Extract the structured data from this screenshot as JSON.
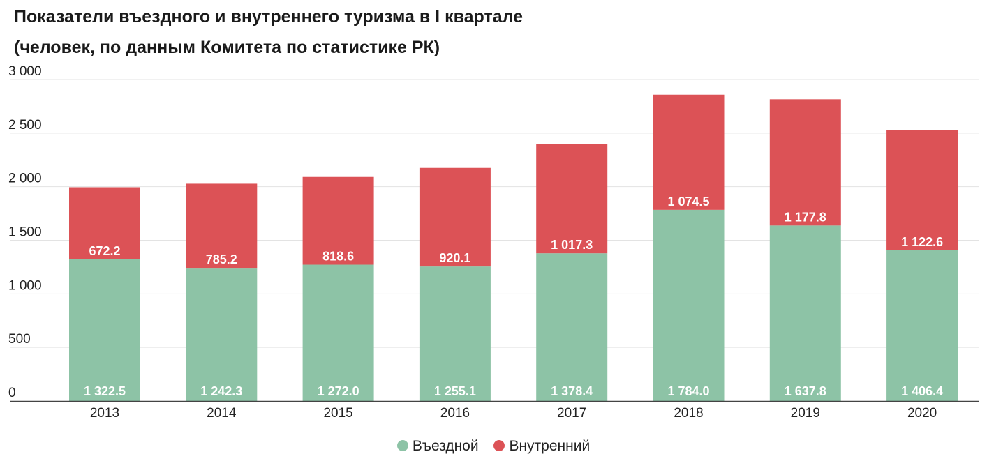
{
  "chart_data": {
    "type": "bar",
    "stacked": true,
    "title": "Показатели въездного и внутреннего туризма в I квартале (человек, по данным Комитета по статистике РК)",
    "title_lines": [
      "Показатели въездного и внутреннего туризма в I квартале",
      "(человек, по данным Комитета по статистике РК)"
    ],
    "categories": [
      "2013",
      "2014",
      "2015",
      "2016",
      "2017",
      "2018",
      "2019",
      "2020"
    ],
    "series": [
      {
        "name": "Въездной",
        "color": "#8dc3a6",
        "values": [
          1322.5,
          1242.3,
          1272.0,
          1255.1,
          1378.4,
          1784.0,
          1637.8,
          1406.4
        ],
        "labels": [
          "1 322.5",
          "1 242.3",
          "1 272.0",
          "1 255.1",
          "1 378.4",
          "1 784.0",
          "1 637.8",
          "1 406.4"
        ]
      },
      {
        "name": "Внутренний",
        "color": "#dc5256",
        "values": [
          672.2,
          785.2,
          818.6,
          920.1,
          1017.3,
          1074.5,
          1177.8,
          1122.6
        ],
        "labels": [
          "672.2",
          "785.2",
          "818.6",
          "920.1",
          "1 017.3",
          "1 074.5",
          "1 177.8",
          "1 122.6"
        ]
      }
    ],
    "ylim": [
      0,
      3000
    ],
    "yticks": [
      0,
      500,
      1000,
      1500,
      2000,
      2500,
      3000
    ],
    "ytick_labels": [
      "0",
      "500",
      "1 000",
      "1 500",
      "2 000",
      "2 500",
      "3 000"
    ],
    "grid": true,
    "legend_position": "bottom-center",
    "xlabel": "",
    "ylabel": ""
  }
}
